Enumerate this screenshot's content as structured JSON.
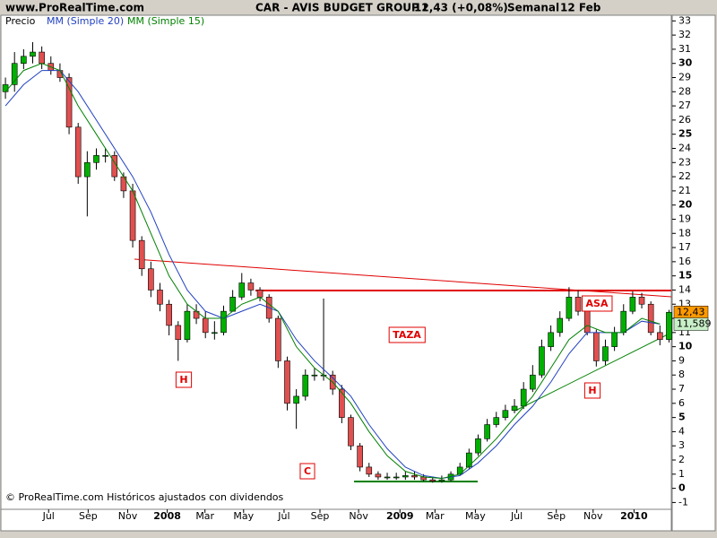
{
  "chart_data": {
    "type": "candlestick",
    "site": "www.ProRealTime.com",
    "title": "CAR - AVIS BUDGET GROUP I",
    "price": "12,43 (+0,08%)",
    "period": "Semanal",
    "date": "12 Feb",
    "legend": [
      "Precio"
    ],
    "footer": "© ProRealTime.com Históricos ajustados con dividendos",
    "up_color": "#00b000",
    "down_color": "#e05050",
    "xlim": [
      -1,
      146.5
    ],
    "ylim": [
      -3,
      33.4
    ],
    "xticks": [
      {
        "value": 9.5,
        "label": "Jul"
      },
      {
        "value": 18.2,
        "label": "Sep"
      },
      {
        "value": 26.9,
        "label": "Nov"
      },
      {
        "value": 35.6,
        "label": "2008"
      },
      {
        "value": 43.9,
        "label": "Mar"
      },
      {
        "value": 52.4,
        "label": "May"
      },
      {
        "value": 61.3,
        "label": "Jul"
      },
      {
        "value": 69.2,
        "label": "Sep"
      },
      {
        "value": 77.7,
        "label": "Nov"
      },
      {
        "value": 86.8,
        "label": "2009"
      },
      {
        "value": 94.5,
        "label": "Mar"
      },
      {
        "value": 103.4,
        "label": "May"
      },
      {
        "value": 112.5,
        "label": "Jul"
      },
      {
        "value": 121.2,
        "label": "Sep"
      },
      {
        "value": 129.3,
        "label": "Nov"
      },
      {
        "value": 138.3,
        "label": "2010"
      }
    ],
    "yticks": [
      -1,
      0,
      1,
      2,
      3,
      4,
      5,
      6,
      7,
      8,
      9,
      10,
      11,
      12,
      13,
      14,
      15,
      16,
      17,
      18,
      19,
      20,
      21,
      22,
      23,
      24,
      25,
      26,
      27,
      28,
      29,
      30,
      31,
      32,
      33
    ],
    "candles": {
      "x": [
        0,
        2,
        4,
        6,
        8,
        10,
        12,
        14,
        16,
        18,
        20,
        22,
        24,
        26,
        28,
        30,
        32,
        34,
        36,
        38,
        40,
        42,
        44,
        46,
        48,
        50,
        52,
        54,
        56,
        58,
        60,
        62,
        64,
        66,
        68,
        70,
        72,
        74,
        76,
        78,
        80,
        82,
        84,
        86,
        88,
        90,
        92,
        94,
        96,
        98,
        100,
        102,
        104,
        106,
        108,
        110,
        112,
        114,
        116,
        118,
        120,
        122,
        124,
        126,
        128,
        130,
        132,
        134,
        136,
        138,
        140,
        142,
        144,
        146
      ],
      "open": [
        28,
        28.5,
        30,
        30.5,
        30.8,
        30,
        29.5,
        29,
        25.5,
        22,
        23,
        23.5,
        23.5,
        22,
        21,
        17.5,
        15.5,
        14,
        13,
        11.5,
        10.5,
        12.5,
        12,
        11,
        11,
        12.5,
        13.5,
        14.5,
        14,
        13.5,
        12,
        9,
        6,
        6.5,
        8,
        8,
        8,
        7,
        5,
        3,
        1.5,
        1,
        0.8,
        0.8,
        0.8,
        0.9,
        0.8,
        0.6,
        0.5,
        0.6,
        1,
        1.5,
        2.5,
        3.5,
        4.5,
        5,
        5.5,
        5.8,
        7,
        8,
        10,
        11,
        12,
        13.5,
        12.5,
        11,
        9,
        10,
        11,
        12.5,
        13.5,
        13,
        11,
        10.5
      ],
      "high": [
        29,
        30.8,
        31,
        31.5,
        31.2,
        30.5,
        30,
        29.3,
        25.8,
        23.8,
        24,
        24,
        23.8,
        22.3,
        21.5,
        17.8,
        16,
        14.5,
        13.3,
        11.8,
        13,
        13,
        12.5,
        11.8,
        12.9,
        14,
        15.2,
        14.8,
        14.2,
        13.7,
        12.2,
        9.3,
        7,
        8.4,
        8.5,
        13.4,
        8.3,
        7.3,
        5.2,
        3.2,
        1.8,
        1.2,
        1.1,
        1.1,
        1.2,
        1.2,
        1,
        0.8,
        0.9,
        1.2,
        1.8,
        2.8,
        3.8,
        4.9,
        5.4,
        5.9,
        6.3,
        7.5,
        8.7,
        10.5,
        11.5,
        12.5,
        14.2,
        14,
        12.8,
        11.2,
        10.5,
        11.4,
        13,
        13.9,
        13.8,
        13.2,
        11.5,
        12.6
      ],
      "low": [
        27.5,
        28,
        29.6,
        30,
        29.6,
        29.2,
        28.7,
        25,
        21.5,
        19.2,
        22.5,
        23,
        21.7,
        20.5,
        17,
        15,
        13.5,
        12.5,
        10.8,
        9,
        10.3,
        11.6,
        10.6,
        10.5,
        10.8,
        12.9,
        13.3,
        13.6,
        13.2,
        11.7,
        8.5,
        5.5,
        4.2,
        6.2,
        7.6,
        7.6,
        6.6,
        4.6,
        2.7,
        1.2,
        0.8,
        0.6,
        0.6,
        0.6,
        0.6,
        0.6,
        0.5,
        0.4,
        0.4,
        0.5,
        0.9,
        1.4,
        2.3,
        3.3,
        4.3,
        4.8,
        5.3,
        5.6,
        6.8,
        7.8,
        9.7,
        10.7,
        11.8,
        12.2,
        10.8,
        8.6,
        8.7,
        9.7,
        10.8,
        12.3,
        12.7,
        10.8,
        10.1,
        10.3
      ],
      "close": [
        28.5,
        30,
        30.5,
        30.8,
        30,
        29.5,
        29,
        25.5,
        22,
        23,
        23.5,
        23.5,
        22,
        21,
        17.5,
        15.5,
        14,
        13,
        11.5,
        10.5,
        12.5,
        12,
        11,
        11,
        12.5,
        13.5,
        14.5,
        14,
        13.5,
        12,
        9,
        6,
        6.5,
        8,
        8,
        8,
        7,
        5,
        3,
        1.5,
        1,
        0.8,
        0.8,
        0.8,
        0.9,
        0.8,
        0.6,
        0.5,
        0.6,
        1,
        1.5,
        2.5,
        3.5,
        4.5,
        5,
        5.5,
        5.8,
        7,
        8,
        10,
        11,
        12,
        13.5,
        12.5,
        11,
        9,
        10,
        11,
        12.5,
        13.5,
        13,
        11,
        10.5,
        12.43
      ]
    },
    "series": [
      {
        "name": "MM (Simple 20)",
        "color": "#2040c0",
        "x": [
          0,
          4,
          8,
          12,
          16,
          20,
          24,
          28,
          32,
          36,
          40,
          44,
          48,
          52,
          56,
          60,
          64,
          68,
          72,
          76,
          80,
          84,
          88,
          92,
          96,
          100,
          104,
          108,
          112,
          116,
          120,
          124,
          128,
          132,
          136,
          140,
          144
        ],
        "values": [
          27,
          28.5,
          29.5,
          29.5,
          28,
          26,
          24,
          22,
          19.5,
          16.5,
          14,
          12.5,
          12,
          12.5,
          13,
          12.5,
          10.5,
          9,
          7.8,
          6.5,
          4.5,
          2.8,
          1.5,
          0.9,
          0.7,
          0.9,
          1.8,
          3,
          4.5,
          5.8,
          7.5,
          9.5,
          11,
          11,
          11,
          11.8,
          11.6
        ]
      },
      {
        "name": "MM (Simple 15)",
        "color": "#008000",
        "x": [
          0,
          4,
          8,
          12,
          16,
          20,
          24,
          28,
          32,
          36,
          40,
          44,
          48,
          52,
          56,
          60,
          64,
          68,
          72,
          76,
          80,
          84,
          88,
          92,
          96,
          100,
          104,
          108,
          112,
          116,
          120,
          124,
          128,
          132,
          136,
          140,
          144
        ],
        "values": [
          28,
          29.5,
          30,
          29.5,
          27,
          25,
          23,
          21,
          18,
          15,
          13,
          12,
          12,
          13,
          13.5,
          12.5,
          10,
          8.5,
          7.5,
          6,
          4,
          2.3,
          1.2,
          0.8,
          0.7,
          1,
          2.2,
          3.5,
          5,
          6.5,
          8.5,
          10.5,
          11.5,
          11,
          11,
          12,
          11.6
        ]
      }
    ],
    "price_tags": [
      {
        "value": 12.43,
        "label": "12,43",
        "color": "#ff9900"
      },
      {
        "value": 11.589,
        "label": "11,589",
        "color": "#c8f0c8"
      }
    ],
    "annotations": [
      "H",
      "C",
      "TAZA",
      "H",
      "ASA"
    ]
  }
}
